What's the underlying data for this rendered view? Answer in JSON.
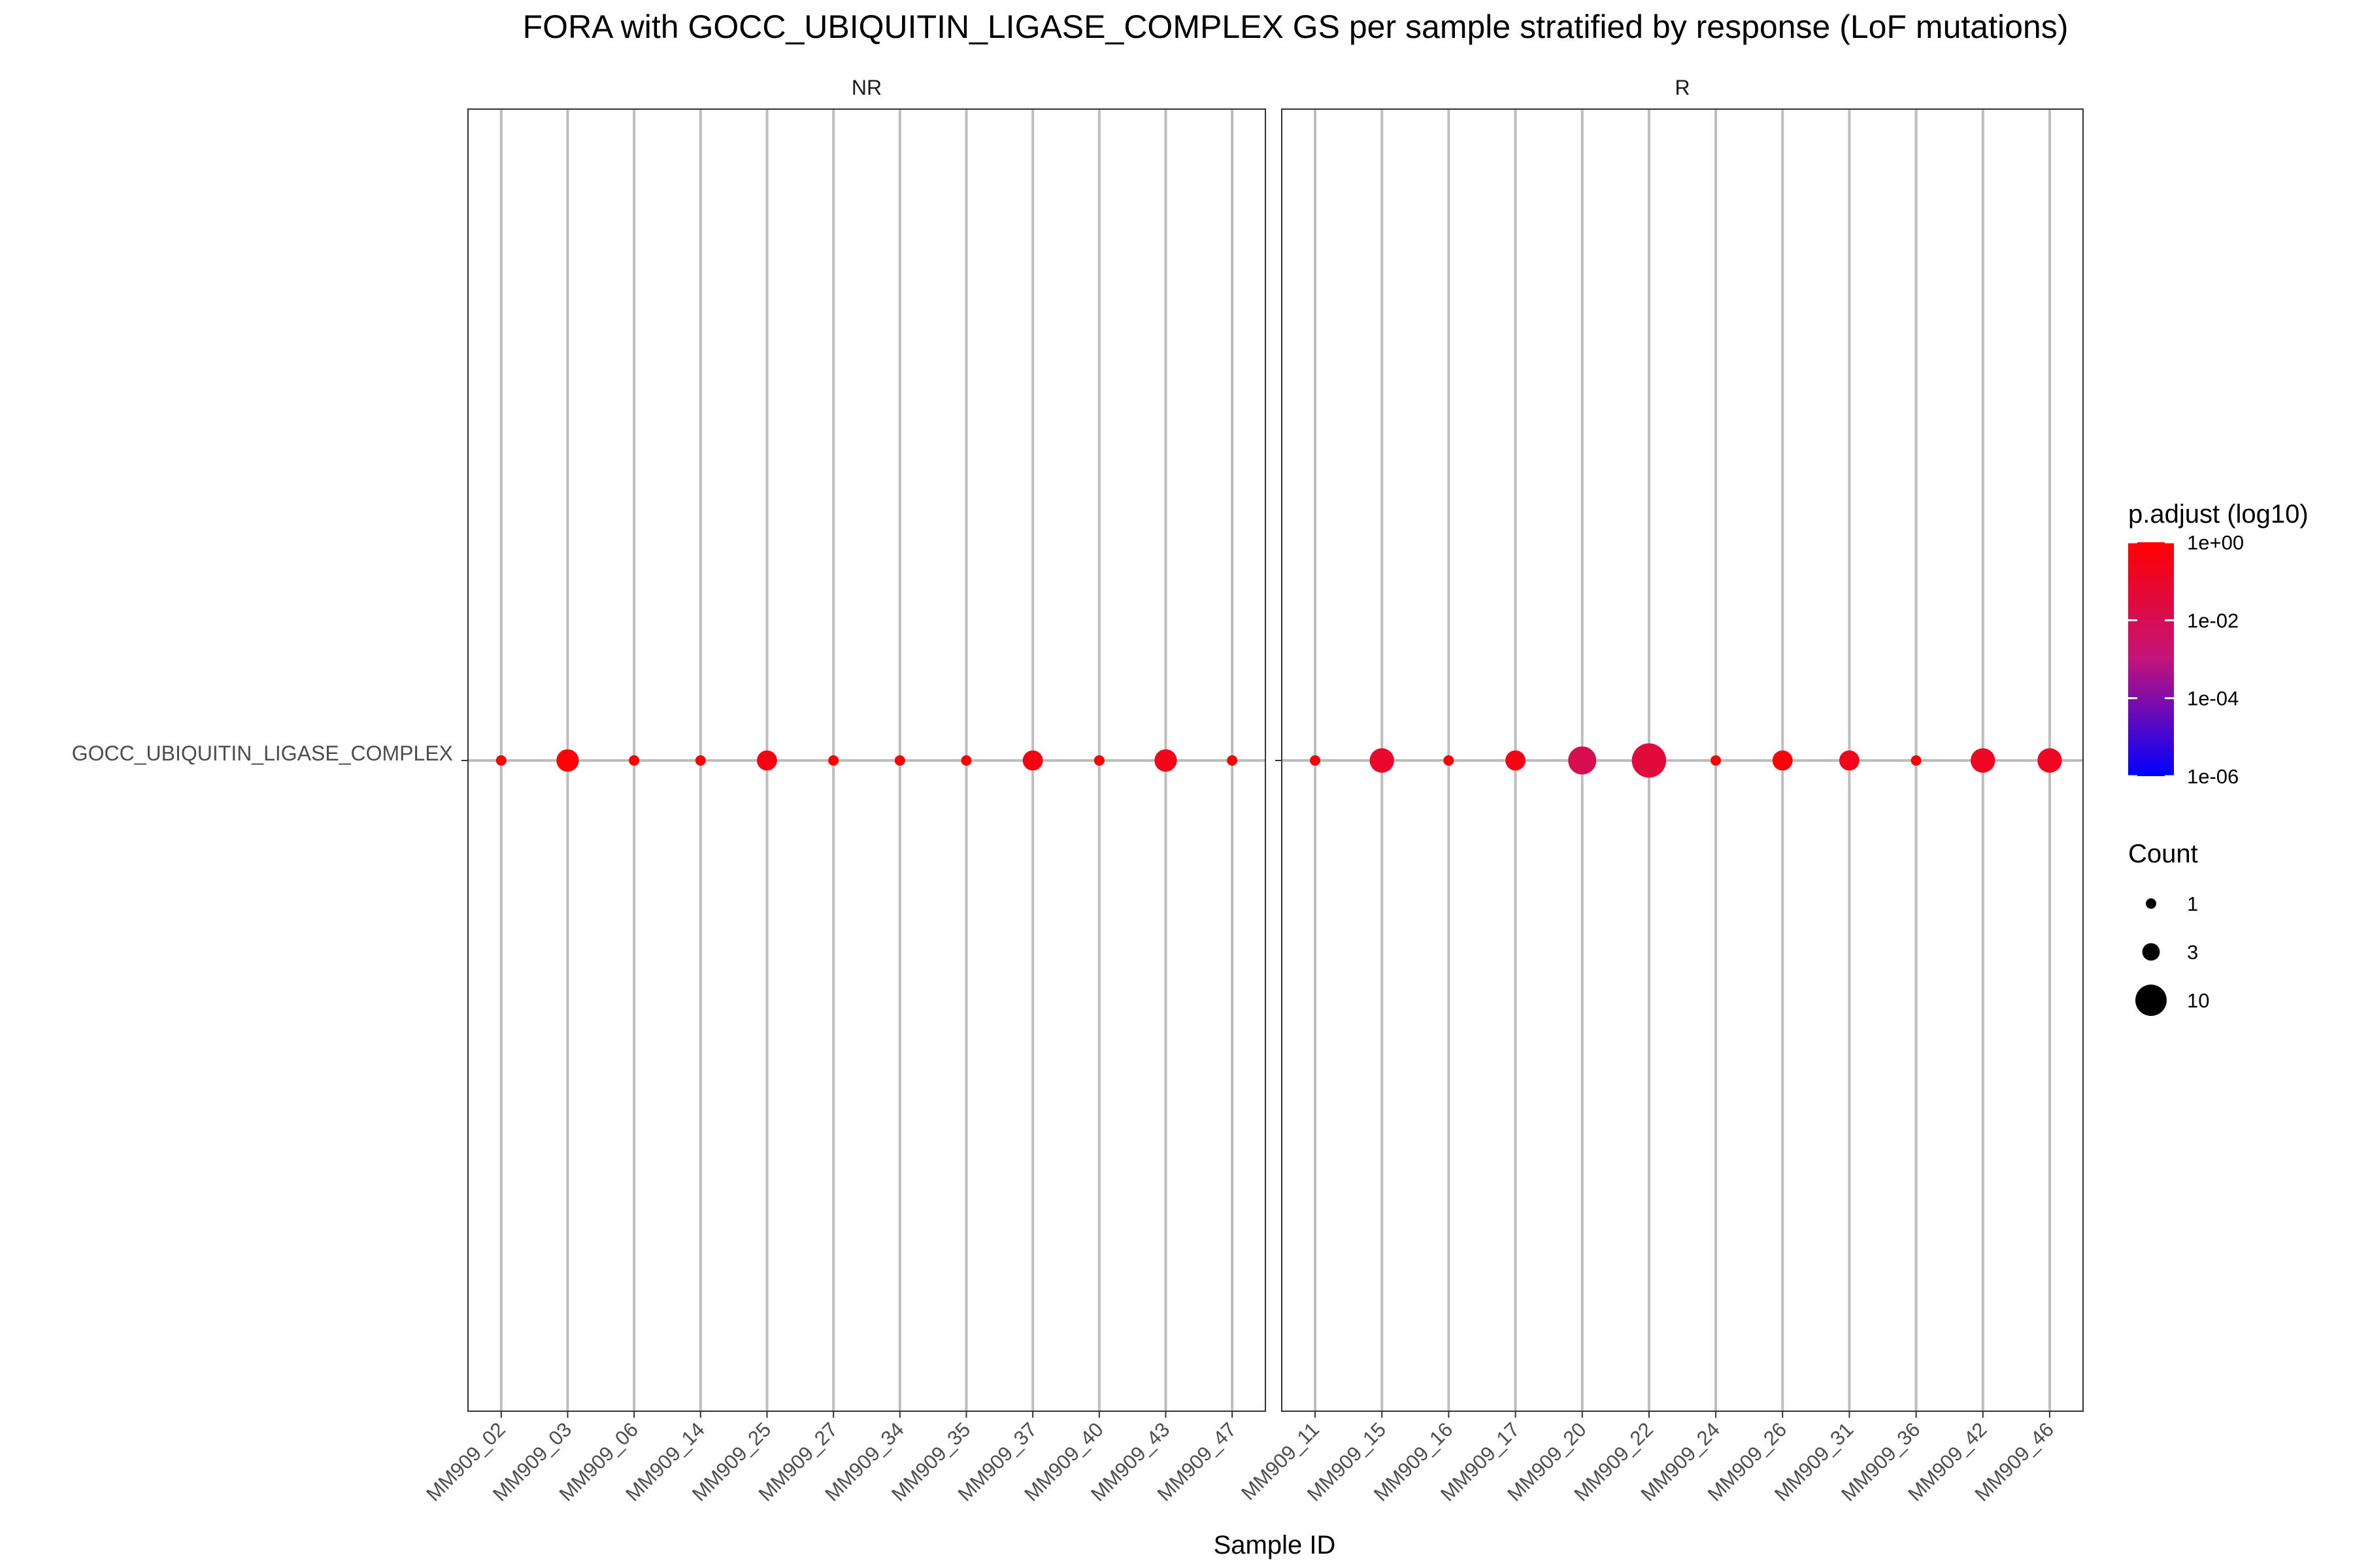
{
  "chart_data": {
    "type": "scatter",
    "title": "FORA with GOCC_UBIQUITIN_LIGASE_COMPLEX GS per sample stratified by response (LoF mutations)",
    "xlabel": "Sample ID",
    "ylabel": "",
    "y_categories": [
      "GOCC_UBIQUITIN_LIGASE_COMPLEX"
    ],
    "panels": [
      {
        "label": "NR",
        "points": [
          {
            "sample": "MM909_02",
            "count": 1,
            "p_adjust": 1.0
          },
          {
            "sample": "MM909_03",
            "count": 5,
            "p_adjust": 0.7
          },
          {
            "sample": "MM909_06",
            "count": 1,
            "p_adjust": 1.0
          },
          {
            "sample": "MM909_14",
            "count": 1,
            "p_adjust": 1.0
          },
          {
            "sample": "MM909_25",
            "count": 4,
            "p_adjust": 0.3
          },
          {
            "sample": "MM909_27",
            "count": 1,
            "p_adjust": 1.0
          },
          {
            "sample": "MM909_34",
            "count": 1,
            "p_adjust": 1.0
          },
          {
            "sample": "MM909_35",
            "count": 1,
            "p_adjust": 1.0
          },
          {
            "sample": "MM909_37",
            "count": 4,
            "p_adjust": 0.3
          },
          {
            "sample": "MM909_40",
            "count": 1,
            "p_adjust": 1.0
          },
          {
            "sample": "MM909_43",
            "count": 5,
            "p_adjust": 0.2
          },
          {
            "sample": "MM909_47",
            "count": 1,
            "p_adjust": 1.0
          }
        ]
      },
      {
        "label": "R",
        "points": [
          {
            "sample": "MM909_11",
            "count": 1,
            "p_adjust": 1.0
          },
          {
            "sample": "MM909_15",
            "count": 6,
            "p_adjust": 0.05
          },
          {
            "sample": "MM909_16",
            "count": 1,
            "p_adjust": 1.0
          },
          {
            "sample": "MM909_17",
            "count": 4,
            "p_adjust": 0.3
          },
          {
            "sample": "MM909_20",
            "count": 8,
            "p_adjust": 0.005
          },
          {
            "sample": "MM909_22",
            "count": 12,
            "p_adjust": 0.02
          },
          {
            "sample": "MM909_24",
            "count": 1,
            "p_adjust": 1.0
          },
          {
            "sample": "MM909_26",
            "count": 4,
            "p_adjust": 0.5
          },
          {
            "sample": "MM909_31",
            "count": 4,
            "p_adjust": 0.2
          },
          {
            "sample": "MM909_36",
            "count": 1,
            "p_adjust": 1.0
          },
          {
            "sample": "MM909_42",
            "count": 6,
            "p_adjust": 0.1
          },
          {
            "sample": "MM909_46",
            "count": 6,
            "p_adjust": 0.1
          }
        ]
      }
    ],
    "color_legend": {
      "title": "p.adjust (log10)",
      "ticks": [
        "1e+00",
        "1e-02",
        "1e-04",
        "1e-06"
      ],
      "tick_values": [
        1,
        0.01,
        0.0001,
        1e-06
      ],
      "log_scale": true,
      "high_color": "#ff0000",
      "low_color": "#0000ff"
    },
    "size_legend": {
      "title": "Count",
      "entries": [
        {
          "label": "1",
          "value": 1
        },
        {
          "label": "3",
          "value": 3
        },
        {
          "label": "10",
          "value": 10
        }
      ]
    },
    "grid": true
  }
}
